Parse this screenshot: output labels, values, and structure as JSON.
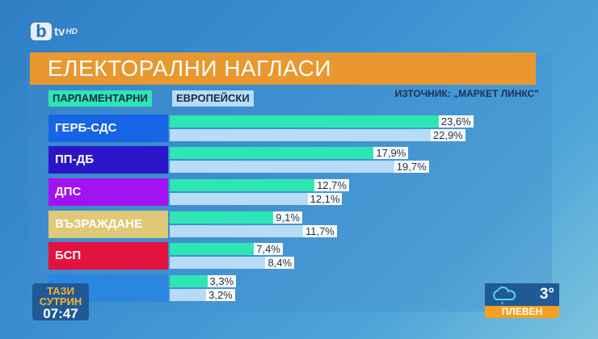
{
  "logo": {
    "b": "b",
    "tv": "tv",
    "hd": "HD"
  },
  "title": "ЕЛЕКТОРАЛНИ НАГЛАСИ",
  "source": "ИЗТОЧНИК: „МАРКЕТ ЛИНКС\"",
  "legend": {
    "parliamentary": "ПАРЛАМЕНТАРНИ",
    "european": "ЕВРОПЕЙСКИ"
  },
  "colors": {
    "parliamentary": "#2ee6b4",
    "european": "#b7dcf7",
    "title_bg": "#e8982e"
  },
  "rows": [
    {
      "party": "ГЕРБ-СДС",
      "color": "#1565e6",
      "p": "23,6%",
      "e": "22,9%"
    },
    {
      "party": "ПП-ДБ",
      "color": "#2a16c8",
      "p": "17,9%",
      "e": "19,7%"
    },
    {
      "party": "ДПС",
      "color": "#a312f0",
      "p": "12,7%",
      "e": "12,1%"
    },
    {
      "party": "ВЪЗРАЖДАНЕ",
      "color": "#dfc878",
      "p": "9,1%",
      "e": "11,7%"
    },
    {
      "party": "БСП",
      "color": "#e4113e",
      "p": "7,4%",
      "e": "8,4%"
    },
    {
      "party": "",
      "color": "#2a86e0",
      "p": "3,3%",
      "e": "3,2%"
    }
  ],
  "badge": {
    "line1": "ТАЗИ",
    "line2": "СУТРИН",
    "time": "07:47"
  },
  "weather": {
    "icon": "cloud-rain-icon",
    "temp": "3°",
    "city": "ПЛЕВЕН"
  },
  "chart_data": {
    "type": "bar",
    "title": "ЕЛЕКТОРАЛНИ НАГЛАСИ",
    "subtitle": "ИЗТОЧНИК: „МАРКЕТ ЛИНКС\"",
    "orientation": "horizontal",
    "categories": [
      "ГЕРБ-СДС",
      "ПП-ДБ",
      "ДПС",
      "ВЪЗРАЖДАНЕ",
      "БСП",
      ""
    ],
    "series": [
      {
        "name": "ПАРЛАМЕНТАРНИ",
        "values": [
          23.6,
          17.9,
          12.7,
          9.1,
          7.4,
          3.3
        ]
      },
      {
        "name": "ЕВРОПЕЙСКИ",
        "values": [
          22.9,
          19.7,
          12.1,
          11.7,
          8.4,
          3.2
        ]
      }
    ],
    "xlabel": "",
    "ylabel": "",
    "legend_position": "top-left",
    "grid": false
  }
}
